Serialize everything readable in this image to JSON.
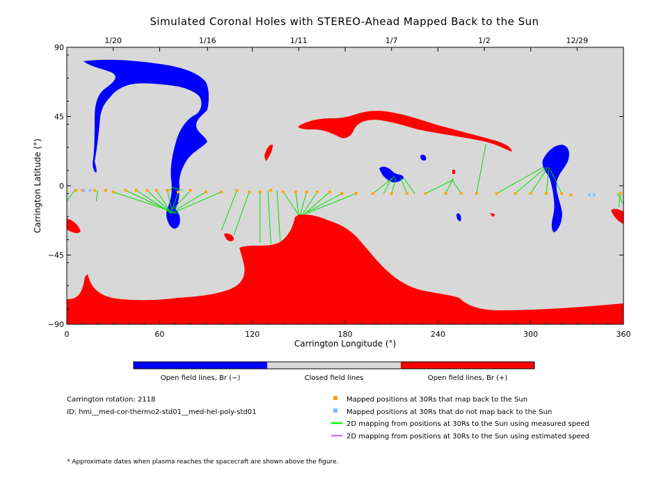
{
  "chart_data": {
    "type": "heatmap",
    "title": "Simulated Coronal Holes with STEREO-Ahead Mapped Back to the Sun",
    "xlabel": "Carrington Longitude (°)",
    "ylabel": "Carrington Latitude (°)",
    "xlim": [
      0,
      360
    ],
    "ylim": [
      -90,
      90
    ],
    "x_ticks": [
      0,
      60,
      120,
      180,
      240,
      300,
      360
    ],
    "y_ticks": [
      -90,
      -45,
      0,
      45,
      90
    ],
    "y_tick_labels": [
      "−90",
      "−45",
      "0",
      "45",
      "90"
    ],
    "top_axis": {
      "ticks": [
        {
          "lon": 30,
          "label": "1/20"
        },
        {
          "lon": 91,
          "label": "1/16"
        },
        {
          "lon": 150,
          "label": "1/11"
        },
        {
          "lon": 210,
          "label": "1/7"
        },
        {
          "lon": 270,
          "label": "1/2"
        },
        {
          "lon": 330,
          "label": "12/29"
        }
      ]
    },
    "colorbar": [
      {
        "label": "Open field lines, Br (−)",
        "color": "#0000ff"
      },
      {
        "label": "Closed field lines",
        "color": "#d8d8d8"
      },
      {
        "label": "Open field lines, Br (+)",
        "color": "#ff0000"
      }
    ],
    "mapped_positions": {
      "map_back": [
        [
          6,
          -3
        ],
        [
          10,
          -3
        ],
        [
          18,
          -3
        ],
        [
          25,
          -3
        ],
        [
          30,
          -4
        ],
        [
          38,
          -3
        ],
        [
          45,
          -3
        ],
        [
          52,
          -3
        ],
        [
          58,
          -3
        ],
        [
          65,
          -3
        ],
        [
          72,
          -4
        ],
        [
          80,
          -3
        ],
        [
          90,
          -4
        ],
        [
          100,
          -4
        ],
        [
          110,
          -3
        ],
        [
          118,
          -4
        ],
        [
          125,
          -4
        ],
        [
          132,
          -3
        ],
        [
          140,
          -4
        ],
        [
          148,
          -4
        ],
        [
          155,
          -4
        ],
        [
          162,
          -4
        ],
        [
          170,
          -4
        ],
        [
          178,
          -5
        ],
        [
          187,
          -5
        ],
        [
          198,
          -5
        ],
        [
          210,
          -5
        ],
        [
          220,
          -5
        ],
        [
          232,
          -5
        ],
        [
          245,
          -5
        ],
        [
          255,
          -5
        ],
        [
          265,
          -5
        ],
        [
          278,
          -5
        ],
        [
          290,
          -5
        ],
        [
          300,
          -5
        ],
        [
          310,
          -5
        ],
        [
          320,
          -5
        ],
        [
          326,
          -6
        ],
        [
          358,
          -5
        ]
      ],
      "no_map": [
        [
          11,
          -3
        ],
        [
          15,
          -3
        ],
        [
          338,
          -6
        ],
        [
          341,
          -6
        ]
      ]
    },
    "mapping_lines": [
      [
        [
          20,
          -3
        ],
        [
          19,
          -10
        ]
      ],
      [
        [
          30,
          -4
        ],
        [
          72,
          -18
        ]
      ],
      [
        [
          38,
          -3
        ],
        [
          70,
          -18
        ]
      ],
      [
        [
          45,
          -3
        ],
        [
          68,
          -18
        ]
      ],
      [
        [
          52,
          -3
        ],
        [
          68,
          -18
        ]
      ],
      [
        [
          58,
          -3
        ],
        [
          67,
          -17
        ]
      ],
      [
        [
          65,
          -3
        ],
        [
          68,
          -16
        ]
      ],
      [
        [
          72,
          -4
        ],
        [
          68,
          -16
        ]
      ],
      [
        [
          80,
          -3
        ],
        [
          69,
          -15
        ]
      ],
      [
        [
          90,
          -4
        ],
        [
          70,
          -16
        ]
      ],
      [
        [
          100,
          -4
        ],
        [
          70,
          -17
        ]
      ],
      [
        [
          66,
          -3
        ],
        [
          68,
          -2
        ]
      ],
      [
        [
          75,
          -3
        ],
        [
          68,
          -1
        ]
      ],
      [
        [
          110,
          -3
        ],
        [
          100,
          -29
        ]
      ],
      [
        [
          118,
          -4
        ],
        [
          108,
          -32
        ]
      ],
      [
        [
          125,
          -4
        ],
        [
          125,
          -37
        ]
      ],
      [
        [
          130,
          -3
        ],
        [
          132,
          -38
        ]
      ],
      [
        [
          136,
          -3
        ],
        [
          138,
          -36
        ]
      ],
      [
        [
          140,
          -4
        ],
        [
          150,
          -19
        ]
      ],
      [
        [
          148,
          -4
        ],
        [
          150,
          -19
        ]
      ],
      [
        [
          155,
          -4
        ],
        [
          151,
          -19
        ]
      ],
      [
        [
          162,
          -4
        ],
        [
          152,
          -19
        ]
      ],
      [
        [
          170,
          -4
        ],
        [
          153,
          -19
        ]
      ],
      [
        [
          178,
          -5
        ],
        [
          154,
          -18
        ]
      ],
      [
        [
          187,
          -5
        ],
        [
          155,
          -18
        ]
      ],
      [
        [
          198,
          -5
        ],
        [
          212,
          6
        ]
      ],
      [
        [
          205,
          -5
        ],
        [
          210,
          5
        ]
      ],
      [
        [
          210,
          -5
        ],
        [
          213,
          5
        ]
      ],
      [
        [
          220,
          -5
        ],
        [
          216,
          5
        ]
      ],
      [
        [
          225,
          -5
        ],
        [
          218,
          5
        ]
      ],
      [
        [
          232,
          -5
        ],
        [
          250,
          4
        ]
      ],
      [
        [
          245,
          -5
        ],
        [
          250,
          5
        ]
      ],
      [
        [
          255,
          -5
        ],
        [
          249,
          4
        ]
      ],
      [
        [
          265,
          -5
        ],
        [
          271,
          27
        ]
      ],
      [
        [
          278,
          -5
        ],
        [
          308,
          12
        ]
      ],
      [
        [
          290,
          -5
        ],
        [
          310,
          12
        ]
      ],
      [
        [
          300,
          -5
        ],
        [
          311,
          12
        ]
      ],
      [
        [
          310,
          -5
        ],
        [
          312,
          12
        ]
      ],
      [
        [
          320,
          -5
        ],
        [
          313,
          10
        ]
      ],
      [
        [
          358,
          -5
        ],
        [
          357,
          -14
        ]
      ],
      [
        [
          356,
          -5
        ],
        [
          360,
          -12
        ]
      ],
      [
        [
          0,
          -10
        ],
        [
          5,
          -3
        ]
      ]
    ],
    "info": {
      "rotation": "Carrington rotation: 2118",
      "id": "ID: hmi__med-cor-thermo2-std01__med-hel-poly-std01"
    },
    "legend": [
      {
        "marker": "square",
        "color": "#ffa500",
        "label": "Mapped positions at 30Rs that map back to the Sun"
      },
      {
        "marker": "square",
        "color": "#88bbff",
        "label": "Mapped positions at 30Rs that do not map back to the Sun"
      },
      {
        "marker": "line",
        "color": "#00ff00",
        "label": "2D mapping from positions at 30Rs to the Sun using measured speed"
      },
      {
        "marker": "line",
        "color": "#c080ff",
        "label": "2D mapping from positions at 30Rs to the Sun using estimated speed"
      }
    ],
    "footnote": "* Approximate dates when plasma reaches the spacecraft are shown above the figure."
  }
}
